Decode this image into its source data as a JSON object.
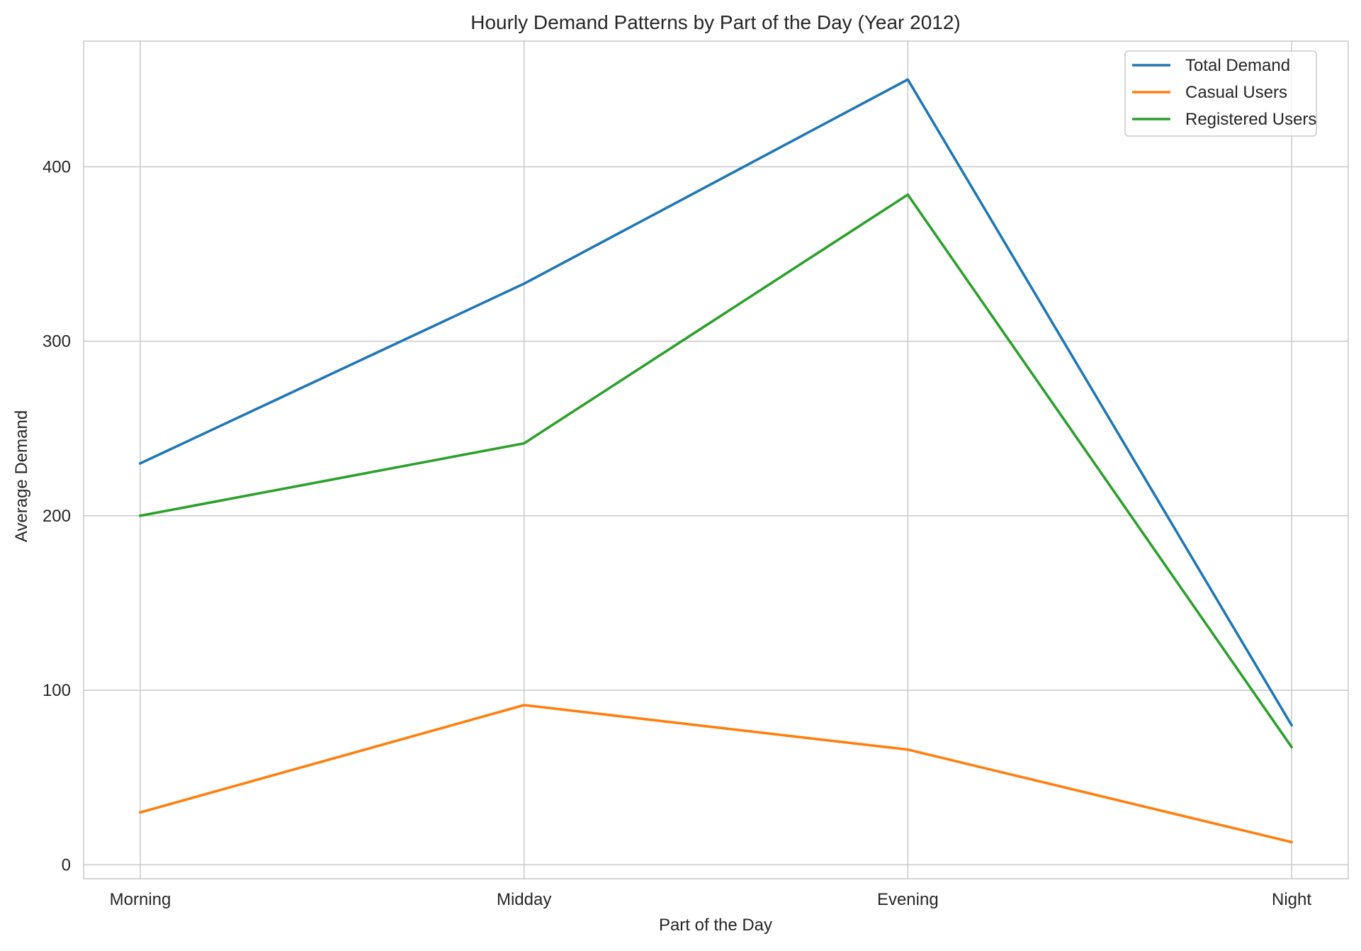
{
  "chart_data": {
    "type": "line",
    "title": "Hourly Demand Patterns by Part of the Day (Year 2012)",
    "xlabel": "Part of the Day",
    "ylabel": "Average Demand",
    "categories": [
      "Morning",
      "Midday",
      "Evening",
      "Night"
    ],
    "y_ticks": [
      0,
      100,
      200,
      300,
      400
    ],
    "ylim": [
      -8,
      472
    ],
    "grid": true,
    "legend_position": "top-right",
    "series": [
      {
        "name": "Total Demand",
        "color": "#1f77b4",
        "values": [
          230,
          333,
          450,
          80
        ]
      },
      {
        "name": "Casual Users",
        "color": "#ff7f0e",
        "values": [
          30,
          91.5,
          66,
          13
        ]
      },
      {
        "name": "Registered Users",
        "color": "#2ca02c",
        "values": [
          200,
          241.5,
          384,
          67.5
        ]
      }
    ]
  }
}
